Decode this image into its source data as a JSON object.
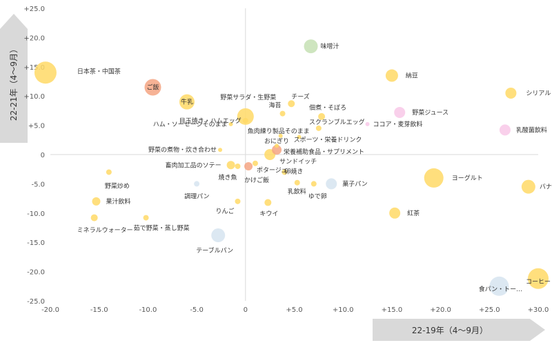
{
  "chart_data": {
    "type": "scatter",
    "xlabel": "22-19年（4～9月）",
    "ylabel": "22-21年（4～9月）",
    "xlim": [
      -20,
      30
    ],
    "ylim": [
      -25,
      25
    ],
    "x_ticks": [
      "-20.0",
      "-15.0",
      "-10.0",
      "-5.0",
      "0",
      "+5.0",
      "+10.0",
      "+15.0",
      "+20.0",
      "+25.0",
      "+30.0"
    ],
    "y_ticks": [
      "+25.0",
      "+20.0",
      "+15.0",
      "+10.0",
      "+5.0",
      "0",
      "-5.0",
      "-10.0",
      "-15.0",
      "-20.0",
      "-25.0"
    ],
    "colors": {
      "yellow": "#FFD966",
      "orange": "#F4A582",
      "green": "#C5E0B4",
      "pink": "#F8C8E8",
      "blue": "#D6E4F0",
      "grid": "#d9d9d9",
      "arrow": "#d9d9d9"
    },
    "points": [
      {
        "label": "日本茶・中国茶",
        "x": -20.5,
        "y": 14.0,
        "size": 16,
        "color": "yellow"
      },
      {
        "label": "ご飯",
        "x": -9.5,
        "y": 11.5,
        "size": 12,
        "color": "orange"
      },
      {
        "label": "牛乳",
        "x": -6.0,
        "y": 9.0,
        "size": 11,
        "color": "yellow"
      },
      {
        "label": "味噌汁",
        "x": 6.7,
        "y": 18.5,
        "size": 10,
        "color": "green"
      },
      {
        "label": "納豆",
        "x": 15.0,
        "y": 13.5,
        "size": 9,
        "color": "yellow"
      },
      {
        "label": "シリアル",
        "x": 27.2,
        "y": 10.5,
        "size": 8,
        "color": "yellow"
      },
      {
        "label": "野菜ジュース",
        "x": 15.8,
        "y": 7.2,
        "size": 8,
        "color": "pink"
      },
      {
        "label": "乳酸菌飲料",
        "x": 26.6,
        "y": 4.2,
        "size": 8,
        "color": "pink"
      },
      {
        "label": "ココア・麦芽飲料",
        "x": 12.5,
        "y": 5.2,
        "size": 3,
        "color": "pink"
      },
      {
        "label": "野菜サラダ・生野菜",
        "x": 0.0,
        "y": 6.5,
        "size": 12,
        "color": "yellow"
      },
      {
        "label": "チーズ",
        "x": 4.7,
        "y": 8.7,
        "size": 5,
        "color": "yellow"
      },
      {
        "label": "海苔",
        "x": 3.8,
        "y": 7.0,
        "size": 4,
        "color": "yellow"
      },
      {
        "label": "佃煮・そぼろ",
        "x": 7.8,
        "y": 6.5,
        "size": 5,
        "color": "yellow"
      },
      {
        "label": "目玉焼き・ハムエッグ",
        "x": 0.0,
        "y": 5.8,
        "size": 4,
        "color": "yellow"
      },
      {
        "label": "スクランブルエッグ",
        "x": 7.5,
        "y": 4.5,
        "size": 4,
        "color": "yellow"
      },
      {
        "label": "ハム・ソーセージそのまま",
        "x": -1.5,
        "y": 5.2,
        "size": 3,
        "color": "yellow"
      },
      {
        "label": "魚肉練り製品そのまま",
        "x": 3.6,
        "y": 3.2,
        "size": 3,
        "color": "yellow"
      },
      {
        "label": "スポーツ・栄養ドリンク",
        "x": 5.5,
        "y": 3.0,
        "size": 3,
        "color": "yellow"
      },
      {
        "label": "おにぎり",
        "x": 3.2,
        "y": 1.5,
        "size": 3,
        "color": "yellow"
      },
      {
        "label": "栄養補助食品・サプリメント",
        "x": 3.2,
        "y": 0.8,
        "size": 7,
        "color": "orange"
      },
      {
        "label": "サンドイッチ",
        "x": 2.5,
        "y": 0.0,
        "size": 8,
        "color": "yellow"
      },
      {
        "label": "野菜の煮物・炊き合わせ",
        "x": -2.6,
        "y": 0.8,
        "size": 3,
        "color": "yellow"
      },
      {
        "label": "畜肉加工品のソテー",
        "x": -1.5,
        "y": -1.8,
        "size": 6,
        "color": "yellow"
      },
      {
        "label": "焼き魚",
        "x": -0.8,
        "y": -2.0,
        "size": 4,
        "color": "yellow"
      },
      {
        "label": "ポタージュ…",
        "x": 1.0,
        "y": -1.5,
        "size": 4,
        "color": "yellow"
      },
      {
        "label": "かけご飯",
        "x": 0.3,
        "y": -2.0,
        "size": 6,
        "color": "orange"
      },
      {
        "label": "卵焼き",
        "x": 4.0,
        "y": -3.0,
        "size": 4,
        "color": "yellow"
      },
      {
        "label": "乳飲料",
        "x": 5.3,
        "y": -4.8,
        "size": 4,
        "color": "yellow"
      },
      {
        "label": "ゆで卵",
        "x": 7.0,
        "y": -5.0,
        "size": 4,
        "color": "yellow"
      },
      {
        "label": "菓子パン",
        "x": 8.8,
        "y": -5.0,
        "size": 8,
        "color": "blue"
      },
      {
        "label": "ヨーグルト",
        "x": 19.3,
        "y": -4.0,
        "size": 14,
        "color": "yellow"
      },
      {
        "label": "バナナ",
        "x": 29.0,
        "y": -5.5,
        "size": 10,
        "color": "yellow"
      },
      {
        "label": "紅茶",
        "x": 15.3,
        "y": -10.0,
        "size": 8,
        "color": "yellow"
      },
      {
        "label": "野菜炒め",
        "x": -14.0,
        "y": -3.0,
        "size": 4,
        "color": "yellow"
      },
      {
        "label": "調理パン",
        "x": -5.0,
        "y": -5.0,
        "size": 4,
        "color": "blue"
      },
      {
        "label": "果汁飲料",
        "x": -15.3,
        "y": -8.0,
        "size": 6,
        "color": "yellow"
      },
      {
        "label": "りんご",
        "x": -0.8,
        "y": -8.0,
        "size": 4,
        "color": "yellow"
      },
      {
        "label": "キウイ",
        "x": 2.3,
        "y": -8.2,
        "size": 5,
        "color": "yellow"
      },
      {
        "label": "ミネラルウォーター",
        "x": -15.5,
        "y": -10.8,
        "size": 5,
        "color": "yellow"
      },
      {
        "label": "茹で野菜・蒸し野菜",
        "x": -10.2,
        "y": -10.8,
        "size": 4,
        "color": "yellow"
      },
      {
        "label": "テーブルパン",
        "x": -2.8,
        "y": -13.8,
        "size": 10,
        "color": "blue"
      },
      {
        "label": "コーヒー",
        "x": 30.0,
        "y": -21.2,
        "size": 15,
        "color": "yellow"
      },
      {
        "label": "食パン・トー…",
        "x": 26.0,
        "y": -22.5,
        "size": 14,
        "color": "blue"
      }
    ]
  }
}
